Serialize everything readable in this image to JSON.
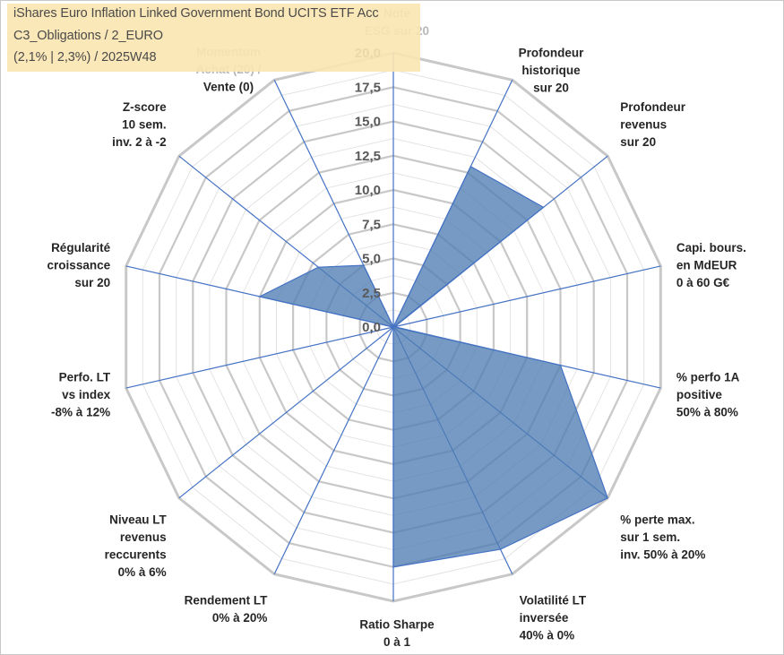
{
  "title": {
    "line1": "iShares Euro Inflation Linked Government Bond UCITS ETF Acc",
    "line2": "C3_Obligations / 2_EURO",
    "line3": "(2,1% | 2,3%) / 2025W48"
  },
  "colors": {
    "fill": "#4f7db3",
    "stroke": "#4472c4",
    "grid": "#c8c8c8",
    "spoke": "#4472c4",
    "title_bg": "#fbe5b0"
  },
  "chart_data": {
    "type": "radar",
    "title": "iShares Euro Inflation Linked Government Bond UCITS ETF Acc",
    "rmin": 0,
    "rmax": 20,
    "ticks": [
      "0,0",
      "2,5",
      "5,0",
      "7,5",
      "10,0",
      "12,5",
      "15,0",
      "17,5",
      "20,0"
    ],
    "axes": [
      {
        "label": [
          "Note",
          "ESG sur 20"
        ],
        "value": 0
      },
      {
        "label": [
          "Profondeur",
          "historique",
          "sur 20"
        ],
        "value": 13
      },
      {
        "label": [
          "Profondeur",
          "revenus",
          "sur 20"
        ],
        "value": 14
      },
      {
        "label": [
          "Capi. bours.",
          "en MdEUR",
          "0 à 60 G€"
        ],
        "value": 0.1
      },
      {
        "label": [
          "% perfo 1A",
          "positive",
          "50% à 80%"
        ],
        "value": 12.5
      },
      {
        "label": [
          "% perte max.",
          "sur 1 sem.",
          "inv. 50% à 20%"
        ],
        "value": 20
      },
      {
        "label": [
          "Volatilité LT",
          "inversée",
          "40% à 0%"
        ],
        "value": 18
      },
      {
        "label": [
          "Ratio Sharpe",
          "0 à 1"
        ],
        "value": 17.5
      },
      {
        "label": [
          "Rendement LT",
          "0% à 20%"
        ],
        "value": 0
      },
      {
        "label": [
          "Niveau LT",
          "revenus",
          "reccurents",
          "0% à 6%"
        ],
        "value": 0
      },
      {
        "label": [
          "Perfo. LT",
          "vs index",
          "-8% à 12%"
        ],
        "value": 0
      },
      {
        "label": [
          "Régularité",
          "croissance",
          "sur 20"
        ],
        "value": 10
      },
      {
        "label": [
          "Z-score",
          "10 sem.",
          "inv. 2 à -2"
        ],
        "value": 7
      },
      {
        "label": [
          "Momentum",
          "Achat (20) /",
          "Vente (0)"
        ],
        "value": 5
      }
    ]
  }
}
